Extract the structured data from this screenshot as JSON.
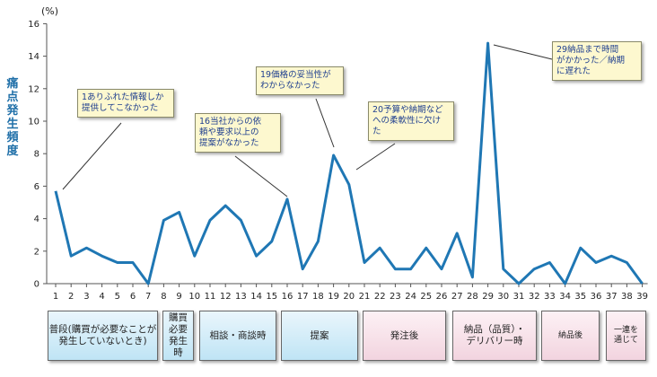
{
  "chart_data": {
    "type": "line",
    "ylabel": "痛点発生頻度",
    "yunit": "(%)",
    "ylim": [
      0,
      16
    ],
    "yticks": [
      0,
      2,
      4,
      6,
      8,
      10,
      12,
      14,
      16
    ],
    "x": [
      1,
      2,
      3,
      4,
      5,
      6,
      7,
      8,
      9,
      10,
      11,
      12,
      13,
      14,
      15,
      16,
      17,
      18,
      19,
      20,
      21,
      22,
      23,
      24,
      25,
      26,
      27,
      28,
      29,
      30,
      31,
      32,
      33,
      34,
      35,
      36,
      37,
      38,
      39
    ],
    "values": [
      5.7,
      1.7,
      2.2,
      1.7,
      1.3,
      1.3,
      0.0,
      3.9,
      4.4,
      1.7,
      3.9,
      4.8,
      3.9,
      1.7,
      2.6,
      5.2,
      0.9,
      2.6,
      7.9,
      6.1,
      1.3,
      2.2,
      0.9,
      0.9,
      2.2,
      0.9,
      3.1,
      0.4,
      14.8,
      0.9,
      0.0,
      0.9,
      1.3,
      0.0,
      2.2,
      1.3,
      1.7,
      1.3,
      0.0
    ],
    "grid": false,
    "color": "#1f77b4",
    "annotations": [
      {
        "point": 1,
        "lines": [
          "1ありふれた情報しか",
          "提供してこなかった"
        ]
      },
      {
        "point": 16,
        "lines": [
          "16当社からの依",
          "頼や要求以上の",
          "提案がなかった"
        ]
      },
      {
        "point": 19,
        "lines": [
          "19価格の妥当性が",
          "わからなかった"
        ]
      },
      {
        "point": 20,
        "lines": [
          "20予算や納期など",
          "への柔軟性に欠け",
          "た"
        ]
      },
      {
        "point": 29,
        "lines": [
          "29納品まで時間",
          "がかかった／納期",
          "に遅れた"
        ]
      }
    ],
    "categories": [
      {
        "label": "普段(購買が必要なことが\n発生していないとき)",
        "style": "blue"
      },
      {
        "label": "購買\n必要\n発生\n時",
        "style": "blue"
      },
      {
        "label": "相談・商談時",
        "style": "blue"
      },
      {
        "label": "提案",
        "style": "blue"
      },
      {
        "label": "発注後",
        "style": "pink"
      },
      {
        "label": "納品（品質）・\nデリバリー時",
        "style": "pink"
      },
      {
        "label": "納品後",
        "style": "pink"
      },
      {
        "label": "一連を\n通じて",
        "style": "pink"
      }
    ]
  }
}
